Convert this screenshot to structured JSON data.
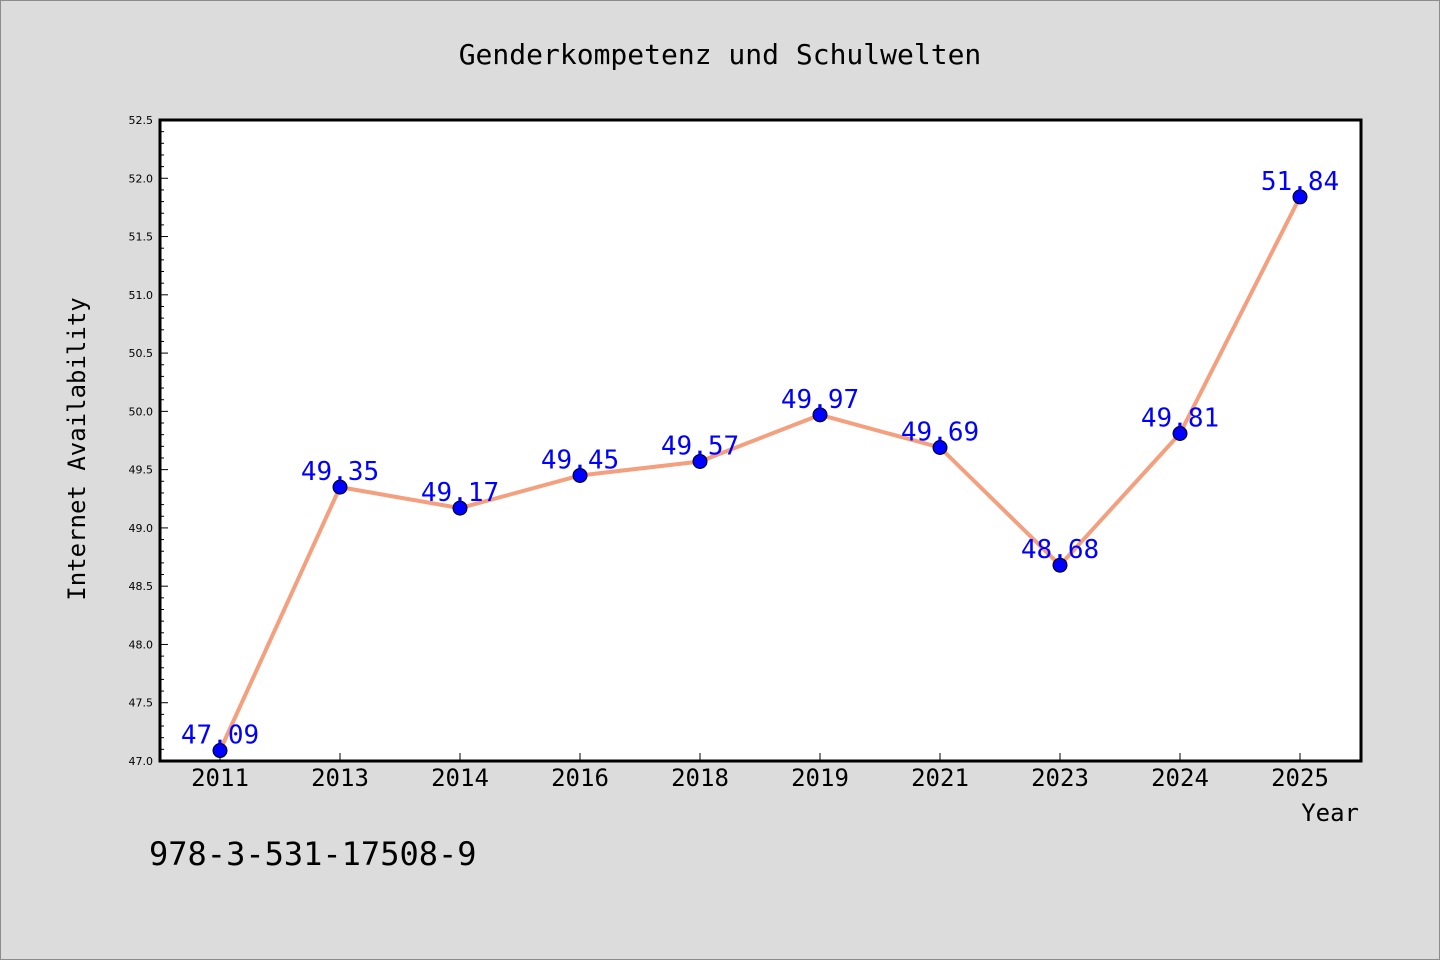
{
  "chart_data": {
    "type": "line",
    "title": "Genderkompetenz und Schulwelten",
    "xlabel": "Year",
    "ylabel": "Internet Availability",
    "categories": [
      "2011",
      "2013",
      "2014",
      "2016",
      "2018",
      "2019",
      "2021",
      "2023",
      "2024",
      "2025"
    ],
    "series": [
      {
        "values": [
          47.09,
          49.35,
          49.17,
          49.45,
          49.57,
          49.97,
          49.69,
          48.68,
          49.81,
          51.84
        ]
      }
    ],
    "data_labels": [
      "47.09",
      "49.35",
      "49.17",
      "49.45",
      "49.57",
      "49.97",
      "49.69",
      "48.68",
      "49.81",
      "51.84"
    ],
    "ylim": [
      47.0,
      52.5
    ],
    "yticks": [
      "47.0",
      "47.5",
      "48.0",
      "48.5",
      "49.0",
      "49.5",
      "50.0",
      "50.5",
      "51.0",
      "51.5",
      "52.0",
      "52.5"
    ],
    "grid": false,
    "legend": "none",
    "colors": {
      "line": "#f4a07e",
      "marker": "#0000ff",
      "data_label": "#0000ff",
      "plot_bg": "#ffffff",
      "page_bg": "#dcdcdc"
    }
  },
  "footer": {
    "isbn": "978-3-531-17508-9"
  }
}
